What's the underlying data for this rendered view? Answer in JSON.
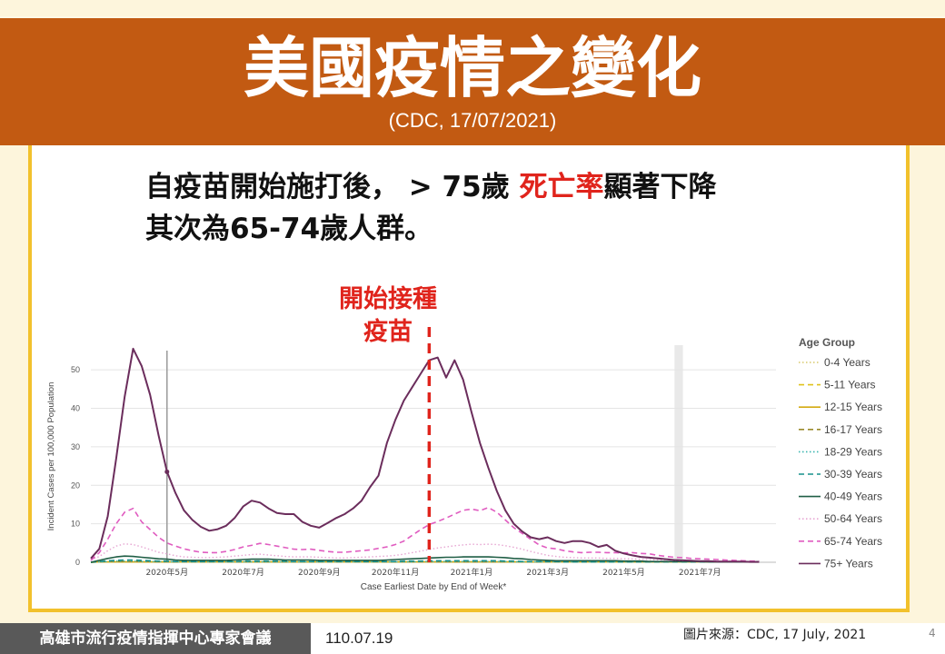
{
  "slide": {
    "title": "美國疫情之變化",
    "subtitle": "(CDC, 17/07/2021)",
    "line1_a": "自疫苗開始施打後， > 75歲 ",
    "line1_red": "死亡率",
    "line1_b": "顯著下降",
    "line2": "其次為65-74歲人群。",
    "annotation_line1": "開始接種",
    "annotation_line2": "疫苗",
    "footer_org": "高雄市流行疫情指揮中心專家會議",
    "footer_date": "110.07.19",
    "footer_source": "圖片來源：CDC, 17 July, 2021",
    "page_number": "4"
  },
  "colors": {
    "banner": "#c25a12",
    "frame": "#f2c12c",
    "annotation": "#e0241c"
  },
  "chart_data": {
    "type": "line",
    "xlabel": "Case Earliest Date by End of Week*",
    "ylabel": "Incident Cases per 100,000 Population",
    "ylim": [
      0,
      55
    ],
    "yticks": [
      0,
      10,
      20,
      30,
      40,
      50
    ],
    "xlim": [
      0,
      81
    ],
    "xticks": [
      {
        "x": 9,
        "label": "2020年5月"
      },
      {
        "x": 18,
        "label": "2020年7月"
      },
      {
        "x": 27,
        "label": "2020年9月"
      },
      {
        "x": 36,
        "label": "2020年11月"
      },
      {
        "x": 45,
        "label": "2021年1月"
      },
      {
        "x": 54,
        "label": "2021年3月"
      },
      {
        "x": 63,
        "label": "2021年5月"
      },
      {
        "x": 72,
        "label": "2021年7月"
      }
    ],
    "vaccine_start_x": 40,
    "reference_line_x": 9,
    "shaded_weeks": [
      69,
      70
    ],
    "legend_title": "Age Group",
    "grid": "horizontal",
    "legend_position": "right",
    "series": [
      {
        "name": "0-4 Years",
        "color": "#d8c96a",
        "dash": "dot",
        "values": [
          0,
          0.1,
          0.1,
          0.1,
          0.1,
          0.1,
          0.1,
          0.1,
          0.1,
          0.1,
          0.1,
          0.1,
          0.1,
          0.1,
          0.1,
          0.1,
          0.1,
          0.1,
          0.1,
          0.1,
          0.1,
          0.1,
          0.1,
          0.1,
          0.1,
          0.1,
          0.1,
          0.1,
          0.1,
          0.1,
          0.1,
          0.1,
          0.1,
          0.1,
          0.1,
          0.1,
          0.1,
          0.1,
          0.1,
          0.1,
          0.1,
          0.1,
          0.1,
          0.1,
          0.1,
          0.1,
          0.1,
          0.1,
          0.1,
          0.1,
          0.1,
          0.1,
          0.1,
          0.1,
          0.1,
          0.1,
          0.1,
          0.1,
          0.1,
          0.1,
          0.1,
          0.1,
          0.1,
          0.1,
          0.1,
          0.1,
          0.1,
          0.1,
          0.1,
          0.1,
          0.1,
          0.1,
          0.1,
          0.1,
          0.1,
          0.1,
          0.1,
          0.1,
          0.1,
          0.1
        ]
      },
      {
        "name": "5-11 Years",
        "color": "#e0c21b",
        "dash": "dash",
        "values": [
          0,
          0.1,
          0.1,
          0.1,
          0.1,
          0.1,
          0.1,
          0.1,
          0.1,
          0.1,
          0.1,
          0.1,
          0.1,
          0.1,
          0.1,
          0.1,
          0.1,
          0.1,
          0.1,
          0.1,
          0.1,
          0.1,
          0.1,
          0.1,
          0.1,
          0.1,
          0.1,
          0.1,
          0.1,
          0.1,
          0.1,
          0.1,
          0.1,
          0.1,
          0.1,
          0.1,
          0.1,
          0.1,
          0.1,
          0.1,
          0.1,
          0.1,
          0.1,
          0.1,
          0.1,
          0.1,
          0.1,
          0.1,
          0.1,
          0.1,
          0.1,
          0.1,
          0.1,
          0.1,
          0.1,
          0.1,
          0.1,
          0.1,
          0.1,
          0.1,
          0.1,
          0.1,
          0.1,
          0.1,
          0.1,
          0.1,
          0.1,
          0.1,
          0.1,
          0.1,
          0.1,
          0.1,
          0.1,
          0.1,
          0.1,
          0.1,
          0.1,
          0.1,
          0.1,
          0.1
        ]
      },
      {
        "name": "12-15 Years",
        "color": "#d4aa10",
        "dash": "solid",
        "values": [
          0,
          0.1,
          0.1,
          0.1,
          0.1,
          0.1,
          0.1,
          0.1,
          0.1,
          0.1,
          0.1,
          0.1,
          0.1,
          0.1,
          0.1,
          0.1,
          0.1,
          0.1,
          0.1,
          0.1,
          0.1,
          0.1,
          0.1,
          0.1,
          0.1,
          0.1,
          0.1,
          0.1,
          0.1,
          0.1,
          0.1,
          0.1,
          0.1,
          0.1,
          0.1,
          0.1,
          0.1,
          0.1,
          0.1,
          0.1,
          0.1,
          0.1,
          0.1,
          0.1,
          0.1,
          0.1,
          0.1,
          0.1,
          0.1,
          0.1,
          0.1,
          0.1,
          0.1,
          0.1,
          0.1,
          0.1,
          0.1,
          0.1,
          0.1,
          0.1,
          0.1,
          0.1,
          0.1,
          0.1,
          0.1,
          0.1,
          0.1,
          0.1,
          0.1,
          0.1,
          0.1,
          0.1,
          0.1,
          0.1,
          0.1,
          0.1,
          0.1,
          0.1,
          0.1,
          0.1
        ]
      },
      {
        "name": "16-17 Years",
        "color": "#9a8a2a",
        "dash": "dash",
        "values": [
          0,
          0.1,
          0.2,
          0.2,
          0.2,
          0.2,
          0.2,
          0.2,
          0.1,
          0.1,
          0.1,
          0.1,
          0.1,
          0.1,
          0.1,
          0.1,
          0.1,
          0.1,
          0.1,
          0.1,
          0.1,
          0.1,
          0.1,
          0.1,
          0.1,
          0.1,
          0.1,
          0.1,
          0.1,
          0.1,
          0.1,
          0.1,
          0.1,
          0.1,
          0.1,
          0.1,
          0.1,
          0.1,
          0.1,
          0.1,
          0.1,
          0.1,
          0.1,
          0.1,
          0.1,
          0.1,
          0.1,
          0.1,
          0.1,
          0.1,
          0.1,
          0.1,
          0.1,
          0.1,
          0.1,
          0.1,
          0.1,
          0.1,
          0.1,
          0.1,
          0.1,
          0.1,
          0.1,
          0.1,
          0.1,
          0.1,
          0.1,
          0.1,
          0.1,
          0.1,
          0.1,
          0.1,
          0.1,
          0.1,
          0.1,
          0.1,
          0.1,
          0.1,
          0.1,
          0.1
        ]
      },
      {
        "name": "18-29 Years",
        "color": "#3bb6b0",
        "dash": "dot",
        "values": [
          0,
          0.1,
          0.2,
          0.3,
          0.3,
          0.3,
          0.2,
          0.2,
          0.2,
          0.2,
          0.1,
          0.1,
          0.1,
          0.1,
          0.1,
          0.1,
          0.1,
          0.1,
          0.1,
          0.1,
          0.1,
          0.1,
          0.1,
          0.1,
          0.1,
          0.1,
          0.1,
          0.1,
          0.1,
          0.1,
          0.1,
          0.1,
          0.1,
          0.1,
          0.1,
          0.1,
          0.1,
          0.1,
          0.1,
          0.2,
          0.2,
          0.2,
          0.2,
          0.2,
          0.2,
          0.2,
          0.2,
          0.2,
          0.2,
          0.2,
          0.1,
          0.1,
          0.1,
          0.1,
          0.1,
          0.1,
          0.1,
          0.1,
          0.1,
          0.1,
          0.1,
          0.1,
          0.1,
          0.1,
          0.1,
          0.1,
          0.1,
          0.1,
          0.1,
          0.1,
          0.1,
          0.1,
          0.1,
          0.1,
          0.1,
          0.1,
          0.1,
          0.1,
          0.1,
          0.1
        ]
      },
      {
        "name": "30-39 Years",
        "color": "#17918c",
        "dash": "dash",
        "values": [
          0,
          0.2,
          0.4,
          0.5,
          0.6,
          0.6,
          0.5,
          0.4,
          0.3,
          0.3,
          0.2,
          0.2,
          0.2,
          0.2,
          0.2,
          0.2,
          0.2,
          0.2,
          0.3,
          0.3,
          0.3,
          0.3,
          0.3,
          0.3,
          0.2,
          0.2,
          0.2,
          0.2,
          0.2,
          0.2,
          0.2,
          0.2,
          0.2,
          0.2,
          0.2,
          0.2,
          0.2,
          0.3,
          0.3,
          0.3,
          0.4,
          0.4,
          0.4,
          0.4,
          0.4,
          0.4,
          0.4,
          0.4,
          0.4,
          0.3,
          0.3,
          0.2,
          0.2,
          0.2,
          0.2,
          0.2,
          0.1,
          0.1,
          0.1,
          0.1,
          0.1,
          0.1,
          0.1,
          0.1,
          0.1,
          0.1,
          0.1,
          0.1,
          0.1,
          0.1,
          0.1,
          0.1,
          0.1,
          0.1,
          0.1,
          0.1,
          0.1,
          0.1,
          0.1,
          0.1
        ]
      },
      {
        "name": "40-49 Years",
        "color": "#1f5e45",
        "dash": "solid",
        "values": [
          0,
          0.5,
          1.0,
          1.4,
          1.6,
          1.5,
          1.3,
          1.1,
          0.9,
          0.8,
          0.6,
          0.5,
          0.5,
          0.5,
          0.5,
          0.5,
          0.5,
          0.6,
          0.7,
          0.8,
          0.8,
          0.8,
          0.7,
          0.6,
          0.6,
          0.6,
          0.6,
          0.5,
          0.5,
          0.5,
          0.5,
          0.5,
          0.5,
          0.5,
          0.5,
          0.6,
          0.7,
          0.8,
          0.9,
          1.0,
          1.1,
          1.2,
          1.3,
          1.3,
          1.4,
          1.4,
          1.4,
          1.4,
          1.3,
          1.2,
          1.0,
          0.9,
          0.7,
          0.6,
          0.5,
          0.4,
          0.4,
          0.4,
          0.4,
          0.4,
          0.4,
          0.4,
          0.4,
          0.3,
          0.3,
          0.3,
          0.2,
          0.2,
          0.2,
          0.2,
          0.2,
          0.2,
          0.2,
          0.1,
          0.1,
          0.1,
          0.1,
          0.1,
          0.1,
          0.1
        ]
      },
      {
        "name": "50-64 Years",
        "color": "#e6a6d2",
        "dash": "dot",
        "values": [
          0.5,
          1.5,
          3.0,
          4.2,
          4.8,
          4.6,
          4.0,
          3.3,
          2.6,
          2.2,
          1.7,
          1.4,
          1.3,
          1.2,
          1.2,
          1.3,
          1.4,
          1.6,
          1.8,
          2.0,
          2.1,
          1.9,
          1.7,
          1.5,
          1.4,
          1.4,
          1.4,
          1.3,
          1.2,
          1.1,
          1.1,
          1.2,
          1.3,
          1.4,
          1.5,
          1.6,
          1.8,
          2.1,
          2.5,
          2.9,
          3.3,
          3.7,
          4.0,
          4.3,
          4.5,
          4.7,
          4.6,
          4.7,
          4.6,
          4.3,
          3.9,
          3.4,
          2.8,
          2.3,
          1.8,
          1.5,
          1.3,
          1.2,
          1.1,
          1.1,
          1.1,
          1.0,
          1.0,
          0.9,
          0.9,
          0.8,
          0.7,
          0.6,
          0.5,
          0.5,
          0.4,
          0.4,
          0.3,
          0.3,
          0.3,
          0.3,
          0.2,
          0.2,
          0.2,
          0.2
        ]
      },
      {
        "name": "65-74 Years",
        "color": "#e05cc0",
        "dash": "dash",
        "values": [
          0.5,
          2.5,
          6.0,
          10.0,
          13.0,
          14.0,
          10.5,
          8.5,
          6.5,
          5.0,
          4.2,
          3.5,
          3.0,
          2.6,
          2.5,
          2.5,
          2.8,
          3.3,
          4.0,
          4.4,
          4.9,
          4.6,
          4.2,
          3.8,
          3.4,
          3.3,
          3.4,
          3.1,
          2.8,
          2.6,
          2.6,
          2.8,
          3.0,
          3.2,
          3.6,
          4.0,
          4.6,
          5.5,
          7.0,
          8.5,
          9.8,
          10.6,
          11.5,
          12.5,
          13.5,
          13.8,
          13.4,
          14.2,
          13.0,
          11.0,
          9.0,
          7.5,
          6.0,
          4.5,
          3.7,
          3.5,
          3.0,
          2.7,
          2.5,
          2.6,
          2.6,
          2.5,
          2.5,
          2.4,
          2.5,
          2.3,
          2.2,
          1.8,
          1.5,
          1.3,
          1.2,
          1.0,
          0.9,
          0.8,
          0.7,
          0.6,
          0.5,
          0.4,
          0.3,
          0.3
        ]
      },
      {
        "name": "75+ Years",
        "color": "#6b2d5c",
        "dash": "solid",
        "values": [
          1.0,
          3.5,
          12.0,
          27.0,
          43.0,
          55.5,
          51.0,
          43.5,
          33.0,
          23.5,
          18.0,
          13.5,
          11.0,
          9.2,
          8.2,
          8.6,
          9.5,
          11.5,
          14.5,
          16.0,
          15.5,
          14.0,
          12.8,
          12.5,
          12.5,
          10.5,
          9.5,
          9.0,
          10.2,
          11.5,
          12.5,
          14.0,
          16.0,
          19.5,
          22.5,
          31.0,
          37.0,
          42.0,
          45.5,
          49.0,
          52.5,
          53.2,
          48.0,
          52.5,
          47.5,
          39.0,
          31.0,
          24.5,
          18.5,
          13.5,
          10.0,
          8.0,
          6.5,
          6.0,
          6.5,
          5.5,
          5.0,
          5.5,
          5.5,
          5.0,
          4.0,
          4.5,
          3.0,
          2.3,
          1.8,
          1.4,
          1.2,
          1.0,
          0.8,
          0.6,
          0.5,
          0.4,
          0.3,
          0.3,
          0.2,
          0.2,
          0.2,
          0.2,
          0.1,
          0.1
        ]
      }
    ]
  }
}
